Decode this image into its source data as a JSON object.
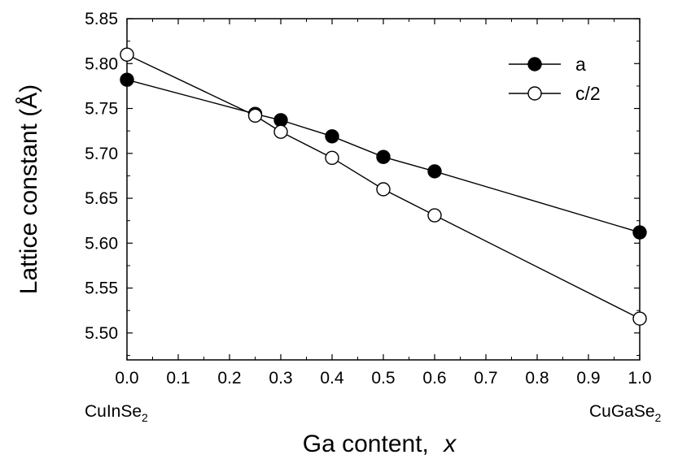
{
  "chart_data": {
    "type": "line",
    "xlabel": "Ga content,",
    "xlabel_var": "x",
    "ylabel": "Lattice constant (Å)",
    "xlim": [
      0.0,
      1.0
    ],
    "ylim": [
      5.47,
      5.85
    ],
    "x_ticks": [
      "0.0",
      "0.1",
      "0.2",
      "0.3",
      "0.4",
      "0.5",
      "0.6",
      "0.7",
      "0.8",
      "0.9",
      "1.0"
    ],
    "y_ticks": [
      "5.50",
      "5.55",
      "5.60",
      "5.65",
      "5.70",
      "5.75",
      "5.80",
      "5.85"
    ],
    "end_labels": {
      "left": {
        "base": "CuInSe",
        "sub": "2"
      },
      "right": {
        "base": "CuGaSe",
        "sub": "2"
      }
    },
    "legend_position": "top-right",
    "series": [
      {
        "name": "a",
        "marker": "filled-circle",
        "color": "#000000",
        "x": [
          0.0,
          0.25,
          0.3,
          0.4,
          0.5,
          0.6,
          1.0
        ],
        "y": [
          5.782,
          5.744,
          5.737,
          5.719,
          5.696,
          5.68,
          5.612
        ]
      },
      {
        "name": "c/2",
        "marker": "open-circle",
        "color": "#000000",
        "x": [
          0.0,
          0.25,
          0.3,
          0.4,
          0.5,
          0.6,
          1.0
        ],
        "y": [
          5.81,
          5.742,
          5.724,
          5.695,
          5.66,
          5.631,
          5.516
        ]
      }
    ]
  }
}
